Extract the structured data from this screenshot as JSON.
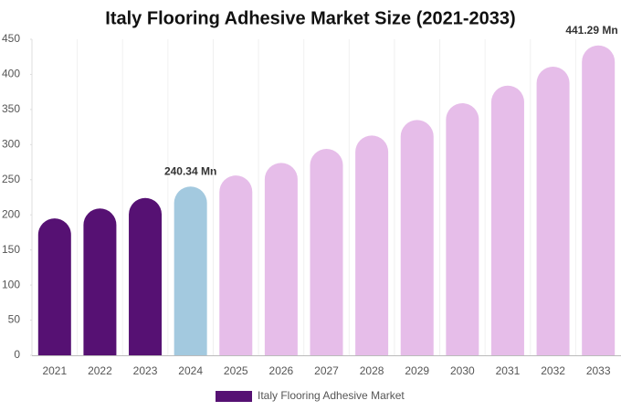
{
  "chart_data": {
    "type": "bar",
    "title": "Italy Flooring Adhesive Market Size (2021-2033)",
    "categories": [
      "2021",
      "2022",
      "2023",
      "2024",
      "2025",
      "2026",
      "2027",
      "2028",
      "2029",
      "2030",
      "2031",
      "2032",
      "2033"
    ],
    "series": [
      {
        "name": "Italy Flooring Adhesive Market",
        "color": "#561173",
        "values": [
          195,
          209,
          224,
          240.34,
          256,
          274,
          294,
          313,
          335,
          359,
          384,
          411,
          441.29
        ],
        "value_labels": [
          null,
          null,
          null,
          "240.34 Mn",
          null,
          null,
          null,
          null,
          null,
          null,
          null,
          null,
          "441.29 Mn"
        ],
        "colors": [
          "#561173",
          "#561173",
          "#561173",
          "#a3c9df",
          "#e6bde9",
          "#e6bde9",
          "#e6bde9",
          "#e6bde9",
          "#e6bde9",
          "#e6bde9",
          "#e6bde9",
          "#e6bde9",
          "#e6bde9"
        ]
      }
    ],
    "ylim": [
      0,
      450
    ],
    "yticks": [
      0,
      50,
      100,
      150,
      200,
      250,
      300,
      350,
      400,
      450
    ],
    "legend": "bottom"
  }
}
